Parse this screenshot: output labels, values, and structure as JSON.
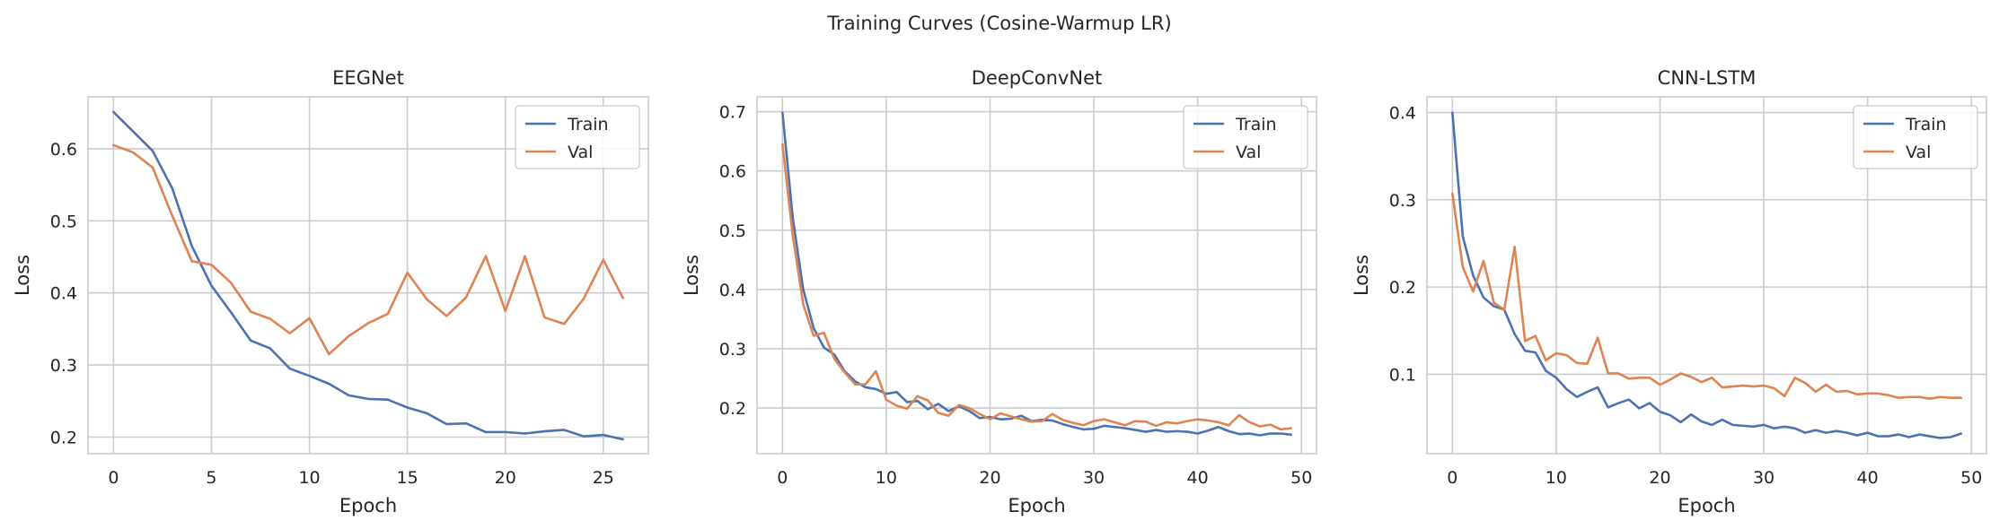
{
  "figure": {
    "title": "Training Curves (Cosine-Warmup LR)"
  },
  "colors": {
    "train": "#4c72b0",
    "val": "#dd8452",
    "grid": "#cccccc",
    "frame": "#cccccc"
  },
  "chart_data": [
    {
      "type": "line",
      "title": "EEGNet",
      "xlabel": "Epoch",
      "ylabel": "Loss",
      "xlim": [
        -1.3,
        27.3
      ],
      "ylim": [
        0.177,
        0.672
      ],
      "xticks": [
        0,
        5,
        10,
        15,
        20,
        25
      ],
      "yticks": [
        0.2,
        0.3,
        0.4,
        0.5,
        0.6
      ],
      "grid": true,
      "legend": "top-right",
      "x": [
        0,
        1,
        2,
        3,
        4,
        5,
        6,
        7,
        8,
        9,
        10,
        11,
        12,
        13,
        14,
        15,
        16,
        17,
        18,
        19,
        20,
        21,
        22,
        23,
        24,
        25,
        26
      ],
      "series": [
        {
          "name": "Train",
          "color": "#4c72b0",
          "values": [
            0.651,
            0.624,
            0.597,
            0.545,
            0.465,
            0.41,
            0.373,
            0.334,
            0.323,
            0.295,
            0.285,
            0.274,
            0.258,
            0.253,
            0.252,
            0.241,
            0.233,
            0.218,
            0.219,
            0.207,
            0.207,
            0.205,
            0.208,
            0.21,
            0.201,
            0.203,
            0.197
          ]
        },
        {
          "name": "Val",
          "color": "#dd8452",
          "values": [
            0.605,
            0.595,
            0.574,
            0.507,
            0.444,
            0.439,
            0.414,
            0.374,
            0.364,
            0.344,
            0.365,
            0.315,
            0.34,
            0.358,
            0.371,
            0.428,
            0.391,
            0.368,
            0.394,
            0.451,
            0.375,
            0.451,
            0.366,
            0.357,
            0.392,
            0.446,
            0.393
          ]
        }
      ]
    },
    {
      "type": "line",
      "title": "DeepConvNet",
      "xlabel": "Epoch",
      "ylabel": "Loss",
      "xlim": [
        -2.45,
        51.45
      ],
      "ylim": [
        0.123,
        0.725
      ],
      "xticks": [
        0,
        10,
        20,
        30,
        40,
        50
      ],
      "yticks": [
        0.2,
        0.3,
        0.4,
        0.5,
        0.6,
        0.7
      ],
      "grid": true,
      "legend": "top-right",
      "x": [
        0,
        1,
        2,
        3,
        4,
        5,
        6,
        7,
        8,
        9,
        10,
        11,
        12,
        13,
        14,
        15,
        16,
        17,
        18,
        19,
        20,
        21,
        22,
        23,
        24,
        25,
        26,
        27,
        28,
        29,
        30,
        31,
        32,
        33,
        34,
        35,
        36,
        37,
        38,
        39,
        40,
        41,
        42,
        43,
        44,
        45,
        46,
        47,
        48,
        49
      ],
      "series": [
        {
          "name": "Train",
          "color": "#4c72b0",
          "values": [
            0.698,
            0.52,
            0.4,
            0.335,
            0.302,
            0.29,
            0.262,
            0.245,
            0.235,
            0.232,
            0.224,
            0.227,
            0.21,
            0.212,
            0.198,
            0.207,
            0.195,
            0.203,
            0.195,
            0.183,
            0.185,
            0.181,
            0.182,
            0.187,
            0.178,
            0.18,
            0.179,
            0.173,
            0.168,
            0.164,
            0.165,
            0.17,
            0.168,
            0.166,
            0.163,
            0.16,
            0.163,
            0.16,
            0.161,
            0.16,
            0.157,
            0.162,
            0.168,
            0.161,
            0.156,
            0.157,
            0.154,
            0.157,
            0.157,
            0.155
          ]
        },
        {
          "name": "Val",
          "color": "#dd8452",
          "values": [
            0.645,
            0.49,
            0.375,
            0.322,
            0.327,
            0.283,
            0.26,
            0.24,
            0.24,
            0.262,
            0.214,
            0.204,
            0.199,
            0.22,
            0.213,
            0.192,
            0.187,
            0.205,
            0.2,
            0.19,
            0.181,
            0.191,
            0.186,
            0.181,
            0.177,
            0.178,
            0.19,
            0.18,
            0.175,
            0.171,
            0.178,
            0.181,
            0.176,
            0.171,
            0.178,
            0.177,
            0.17,
            0.176,
            0.174,
            0.178,
            0.181,
            0.179,
            0.176,
            0.171,
            0.188,
            0.176,
            0.169,
            0.172,
            0.164,
            0.166
          ]
        }
      ]
    },
    {
      "type": "line",
      "title": "CNN-LSTM",
      "xlabel": "Epoch",
      "ylabel": "Loss",
      "xlim": [
        -2.45,
        51.45
      ],
      "ylim": [
        0.009,
        0.418
      ],
      "xticks": [
        0,
        10,
        20,
        30,
        40,
        50
      ],
      "yticks": [
        0.1,
        0.2,
        0.3,
        0.4
      ],
      "grid": true,
      "legend": "top-right",
      "x": [
        0,
        1,
        2,
        3,
        4,
        5,
        6,
        7,
        8,
        9,
        10,
        11,
        12,
        13,
        14,
        15,
        16,
        17,
        18,
        19,
        20,
        21,
        22,
        23,
        24,
        25,
        26,
        27,
        28,
        29,
        30,
        31,
        32,
        33,
        34,
        35,
        36,
        37,
        38,
        39,
        40,
        41,
        42,
        43,
        44,
        45,
        46,
        47,
        48,
        49
      ],
      "series": [
        {
          "name": "Train",
          "color": "#4c72b0",
          "values": [
            0.4,
            0.258,
            0.213,
            0.188,
            0.178,
            0.174,
            0.146,
            0.127,
            0.125,
            0.104,
            0.096,
            0.083,
            0.074,
            0.08,
            0.085,
            0.062,
            0.067,
            0.071,
            0.061,
            0.067,
            0.057,
            0.053,
            0.045,
            0.054,
            0.046,
            0.042,
            0.048,
            0.042,
            0.041,
            0.04,
            0.042,
            0.038,
            0.04,
            0.038,
            0.033,
            0.036,
            0.033,
            0.035,
            0.033,
            0.03,
            0.033,
            0.029,
            0.029,
            0.031,
            0.028,
            0.031,
            0.029,
            0.027,
            0.028,
            0.032
          ]
        },
        {
          "name": "Val",
          "color": "#dd8452",
          "values": [
            0.307,
            0.223,
            0.195,
            0.23,
            0.182,
            0.174,
            0.246,
            0.138,
            0.144,
            0.116,
            0.124,
            0.122,
            0.113,
            0.112,
            0.142,
            0.101,
            0.101,
            0.095,
            0.096,
            0.096,
            0.088,
            0.094,
            0.101,
            0.097,
            0.091,
            0.096,
            0.085,
            0.086,
            0.087,
            0.086,
            0.087,
            0.084,
            0.075,
            0.096,
            0.09,
            0.08,
            0.088,
            0.08,
            0.081,
            0.077,
            0.078,
            0.078,
            0.076,
            0.073,
            0.074,
            0.074,
            0.072,
            0.074,
            0.073,
            0.073
          ]
        }
      ]
    }
  ]
}
